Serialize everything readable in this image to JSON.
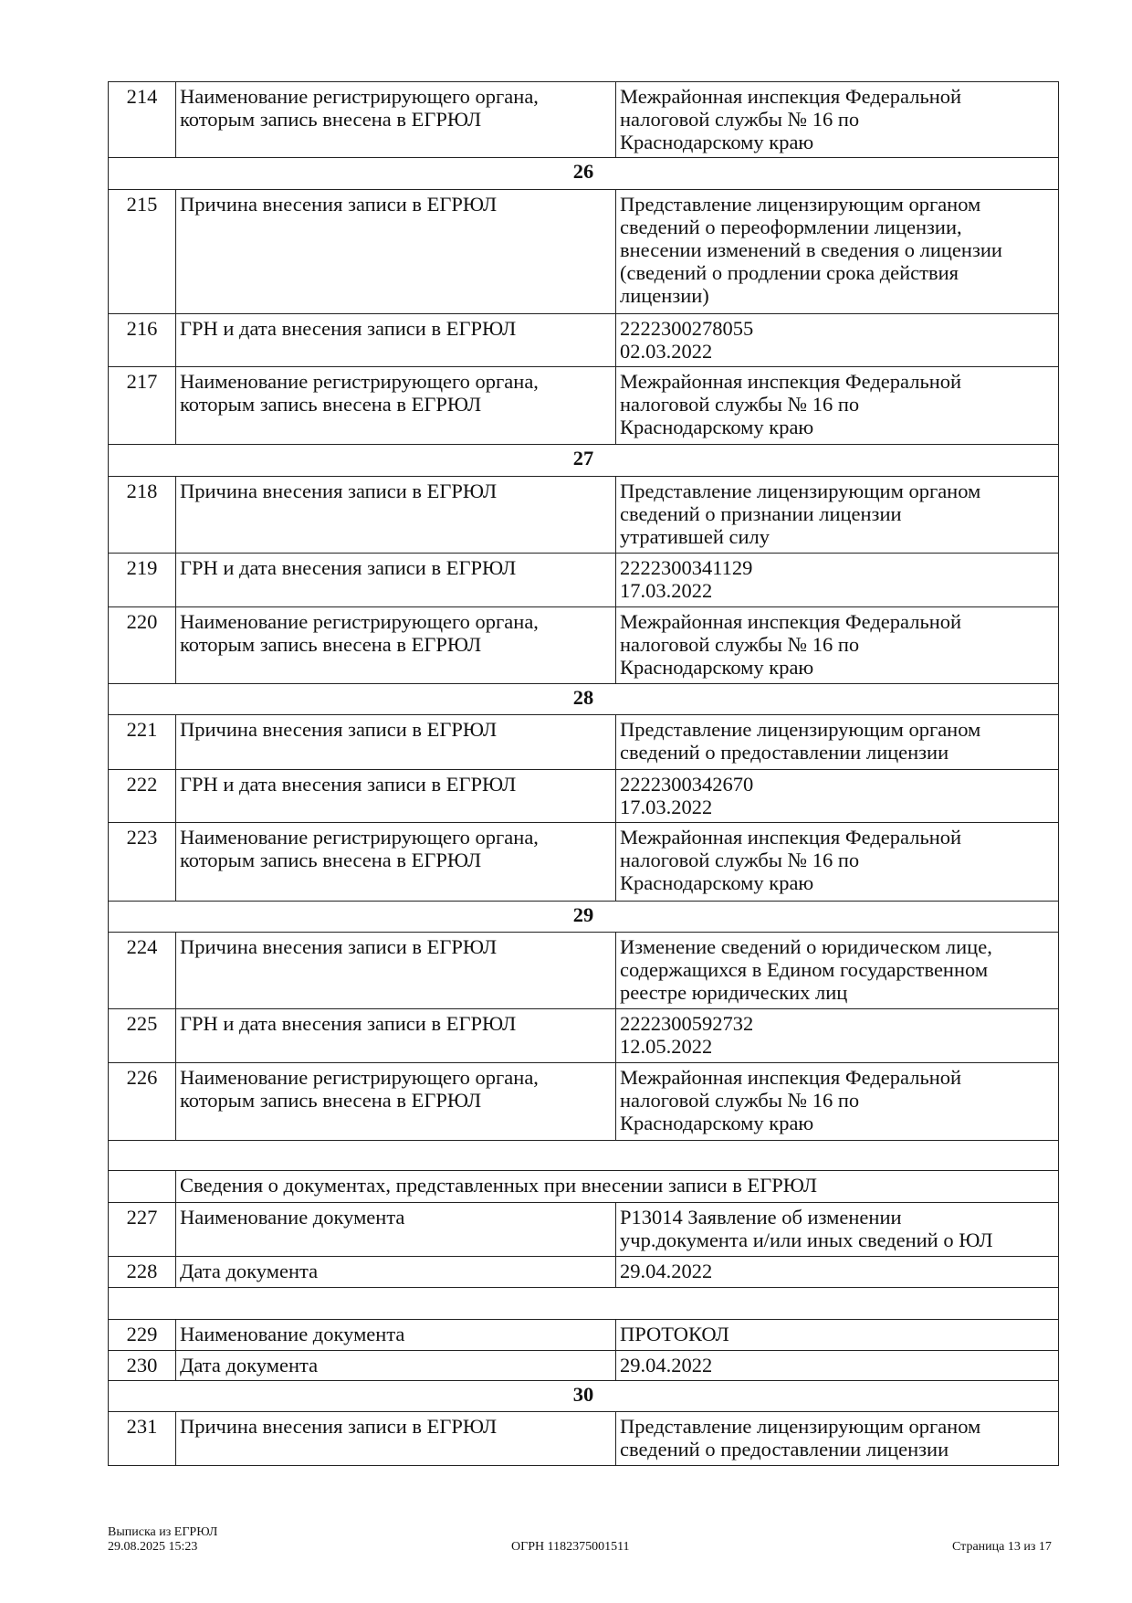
{
  "rows": [
    {
      "type": "row",
      "num": "214",
      "label": "Наименование регистрирующего органа, которым запись внесена в ЕГРЮЛ",
      "value": "Межрайонная инспекция Федеральной\nналоговой службы № 16 по\nКраснодарскому краю"
    },
    {
      "type": "section",
      "title": "26"
    },
    {
      "type": "row",
      "num": "215",
      "label": "Причина внесения записи в ЕГРЮЛ",
      "value": "Представление лицензирующим органом\nсведений о переоформлении лицензии,\nвнесении изменений в сведения о лицензии\n(сведений о продлении срока действия\nлицензии)"
    },
    {
      "type": "row",
      "num": "216",
      "label": "ГРН и дата внесения записи в ЕГРЮЛ",
      "value": "2222300278055\n02.03.2022"
    },
    {
      "type": "row",
      "num": "217",
      "label": "Наименование регистрирующего органа, которым запись внесена в ЕГРЮЛ",
      "value": "Межрайонная инспекция Федеральной\nналоговой службы № 16 по\nКраснодарскому краю"
    },
    {
      "type": "section",
      "title": "27"
    },
    {
      "type": "row",
      "num": "218",
      "label": "Причина внесения записи в ЕГРЮЛ",
      "value": "Представление лицензирующим органом\nсведений о признании лицензии\nутратившей силу"
    },
    {
      "type": "row",
      "num": "219",
      "label": "ГРН и дата внесения записи в ЕГРЮЛ",
      "value": "2222300341129\n17.03.2022"
    },
    {
      "type": "row",
      "num": "220",
      "label": "Наименование регистрирующего органа, которым запись внесена в ЕГРЮЛ",
      "value": "Межрайонная инспекция Федеральной\nналоговой службы № 16 по\nКраснодарскому краю"
    },
    {
      "type": "section",
      "title": "28"
    },
    {
      "type": "row",
      "num": "221",
      "label": "Причина внесения записи в ЕГРЮЛ",
      "value": "Представление лицензирующим органом\nсведений о предоставлении лицензии"
    },
    {
      "type": "row",
      "num": "222",
      "label": "ГРН и дата внесения записи в ЕГРЮЛ",
      "value": "2222300342670\n17.03.2022"
    },
    {
      "type": "row",
      "num": "223",
      "label": "Наименование регистрирующего органа, которым запись внесена в ЕГРЮЛ",
      "value": "Межрайонная инспекция Федеральной\nналоговой службы № 16 по\nКраснодарскому краю"
    },
    {
      "type": "section",
      "title": "29"
    },
    {
      "type": "row",
      "num": "224",
      "label": "Причина внесения записи в ЕГРЮЛ",
      "value": "Изменение сведений о юридическом лице,\nсодержащихся в Едином государственном\nреестре юридических лиц"
    },
    {
      "type": "row",
      "num": "225",
      "label": "ГРН и дата внесения записи в ЕГРЮЛ",
      "value": "2222300592732\n12.05.2022"
    },
    {
      "type": "row",
      "num": "226",
      "label": "Наименование регистрирующего органа, которым запись внесена в ЕГРЮЛ",
      "value": "Межрайонная инспекция Федеральной\nналоговой службы № 16 по\nКраснодарскому краю"
    },
    {
      "type": "blank"
    },
    {
      "type": "subheader",
      "title": "Сведения о документах, представленных при внесении записи в ЕГРЮЛ"
    },
    {
      "type": "row",
      "num": "227",
      "label": "Наименование документа",
      "value": "Р13014 Заявление об изменении\nучр.документа и/или иных сведений о ЮЛ"
    },
    {
      "type": "row",
      "num": "228",
      "label": "Дата документа",
      "value": "29.04.2022"
    },
    {
      "type": "blank"
    },
    {
      "type": "row",
      "num": "229",
      "label": "Наименование документа",
      "value": "ПРОТОКОЛ"
    },
    {
      "type": "row",
      "num": "230",
      "label": "Дата документа",
      "value": "29.04.2022"
    },
    {
      "type": "section",
      "title": "30"
    },
    {
      "type": "row",
      "num": "231",
      "label": "Причина внесения записи в ЕГРЮЛ",
      "value": "Представление лицензирующим органом\nсведений о предоставлении лицензии"
    }
  ],
  "footer": {
    "doc_title": "Выписка из ЕГРЮЛ",
    "datetime": "29.08.2025 15:23",
    "ogrn": "ОГРН 1182375001511",
    "page": "Страница 13 из 17"
  }
}
